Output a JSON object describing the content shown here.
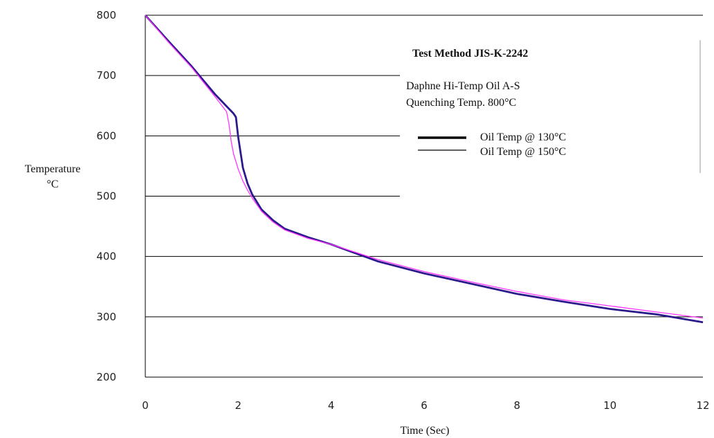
{
  "chart_data": {
    "type": "line",
    "xlabel": "Time (Sec)",
    "ylabel": [
      "Temperature",
      "°C"
    ],
    "xlim": [
      0,
      12
    ],
    "ylim": [
      200,
      800
    ],
    "xticks": [
      0,
      2,
      4,
      6,
      8,
      10,
      12
    ],
    "yticks": [
      200,
      300,
      400,
      500,
      600,
      700,
      800
    ],
    "grid": "horizontal",
    "legend": {
      "title": "Test Method JIS-K-2242",
      "lines": [
        "Daphne Hi-Temp Oil A-S",
        "Quenching Temp. 800°C"
      ],
      "placement": "top-right"
    },
    "series": [
      {
        "name": "Oil Temp @ 130°C",
        "color": "#2a1a8c",
        "legend_color": "#000000",
        "style": "thick",
        "x": [
          0,
          0.5,
          1.0,
          1.5,
          1.75,
          1.9,
          1.95,
          2.0,
          2.1,
          2.2,
          2.3,
          2.5,
          2.75,
          3.0,
          3.5,
          4.0,
          5.0,
          6.0,
          7.0,
          8.0,
          9.0,
          10.0,
          11.0,
          12.0
        ],
        "y": [
          800,
          757,
          715,
          669,
          649,
          637,
          631,
          598,
          547,
          521,
          503,
          478,
          460,
          446,
          432,
          420,
          392,
          372,
          355,
          338,
          325,
          313,
          304,
          291
        ]
      },
      {
        "name": "Oil Temp @ 150°C",
        "color": "#ff33ff",
        "legend_color": "#000000",
        "style": "thin",
        "x": [
          0,
          0.5,
          1.0,
          1.5,
          1.75,
          1.8,
          1.85,
          1.9,
          2.0,
          2.1,
          2.2,
          2.3,
          2.5,
          2.75,
          3.0,
          3.5,
          4.0,
          5.0,
          6.0,
          7.0,
          8.0,
          9.0,
          10.0,
          11.0,
          12.0
        ],
        "y": [
          800,
          755,
          713,
          665,
          640,
          620,
          590,
          570,
          545,
          525,
          510,
          497,
          475,
          457,
          444,
          430,
          420,
          395,
          375,
          358,
          342,
          328,
          318,
          308,
          298
        ]
      }
    ]
  }
}
